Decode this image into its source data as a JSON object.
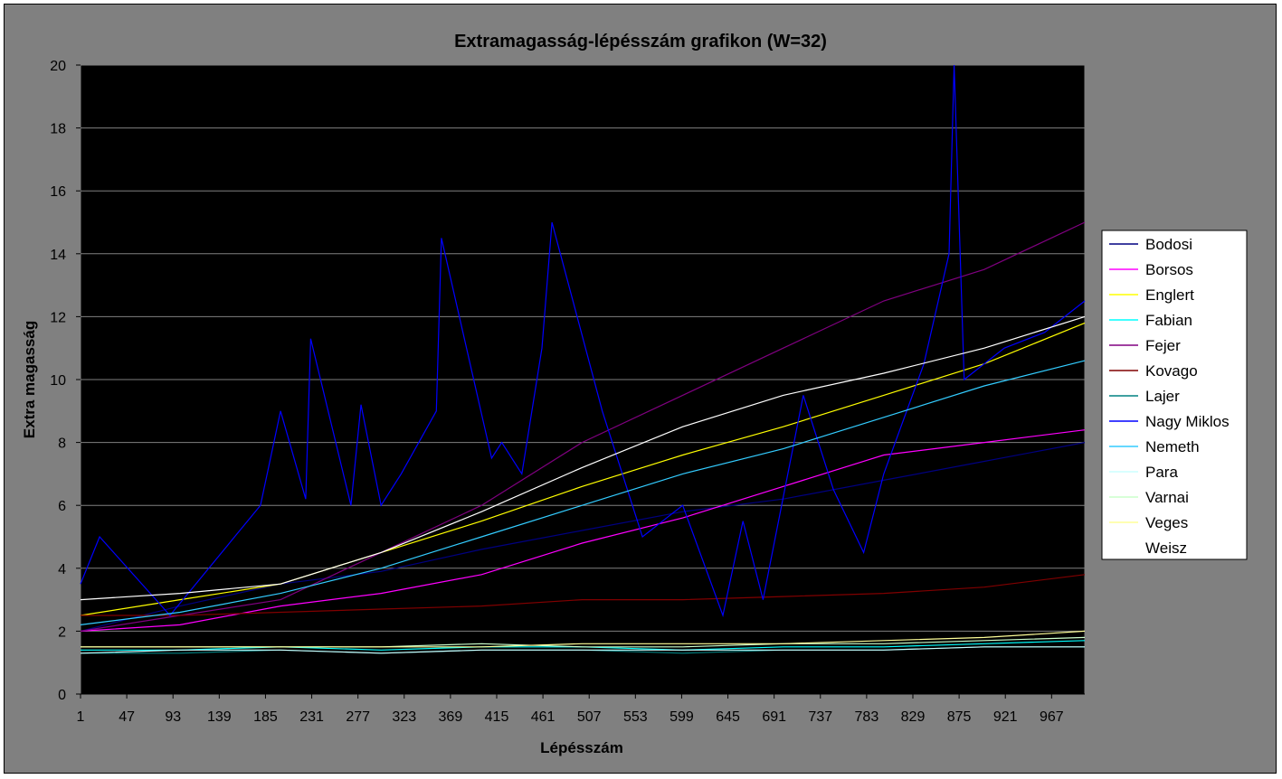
{
  "chart_data": {
    "type": "line",
    "title": "Extramagasság-lépésszám grafikon (W=32)",
    "xlabel": "Lépésszám",
    "ylabel": "Extra magasság",
    "xlim": [
      1,
      1000
    ],
    "ylim": [
      0,
      20
    ],
    "ytick_step": 2,
    "xticks": [
      1,
      47,
      93,
      139,
      185,
      231,
      277,
      323,
      369,
      415,
      461,
      507,
      553,
      599,
      645,
      691,
      737,
      783,
      829,
      875,
      921,
      967
    ],
    "grid": true,
    "legend_position": "right",
    "background": "#000000",
    "series": [
      {
        "name": "Bodosi",
        "color": "#000080",
        "x": [
          1,
          100,
          200,
          300,
          400,
          500,
          600,
          700,
          800,
          900,
          1000
        ],
        "values": [
          2.0,
          2.8,
          3.5,
          3.9,
          4.6,
          5.2,
          5.8,
          6.2,
          6.8,
          7.4,
          8.0
        ]
      },
      {
        "name": "Borsos",
        "color": "#ff00ff",
        "x": [
          1,
          100,
          200,
          300,
          400,
          500,
          600,
          700,
          800,
          900,
          1000
        ],
        "values": [
          2.0,
          2.2,
          2.8,
          3.2,
          3.8,
          4.8,
          5.6,
          6.6,
          7.6,
          8.0,
          8.4
        ]
      },
      {
        "name": "Englert",
        "color": "#ffff00",
        "x": [
          1,
          100,
          200,
          300,
          400,
          500,
          600,
          700,
          800,
          900,
          1000
        ],
        "values": [
          2.5,
          3.0,
          3.5,
          4.5,
          5.5,
          6.6,
          7.6,
          8.5,
          9.5,
          10.5,
          11.8
        ]
      },
      {
        "name": "Fabian",
        "color": "#00ffff",
        "x": [
          1,
          100,
          200,
          300,
          400,
          500,
          600,
          700,
          800,
          900,
          1000
        ],
        "values": [
          1.4,
          1.4,
          1.5,
          1.4,
          1.5,
          1.5,
          1.4,
          1.5,
          1.5,
          1.6,
          1.7
        ]
      },
      {
        "name": "Fejer",
        "color": "#800080",
        "x": [
          1,
          100,
          200,
          300,
          400,
          500,
          600,
          700,
          800,
          900,
          1000
        ],
        "values": [
          2.0,
          2.5,
          3.0,
          4.5,
          6.0,
          8.0,
          9.5,
          11.0,
          12.5,
          13.5,
          15.0
        ]
      },
      {
        "name": "Kovago",
        "color": "#800000",
        "x": [
          1,
          100,
          200,
          300,
          400,
          500,
          600,
          700,
          800,
          900,
          1000
        ],
        "values": [
          2.5,
          2.5,
          2.6,
          2.7,
          2.8,
          3.0,
          3.0,
          3.1,
          3.2,
          3.4,
          3.8
        ]
      },
      {
        "name": "Lajer",
        "color": "#008080",
        "x": [
          1,
          100,
          200,
          300,
          400,
          500,
          600,
          700,
          800,
          900,
          1000
        ],
        "values": [
          1.3,
          1.3,
          1.4,
          1.3,
          1.4,
          1.4,
          1.3,
          1.4,
          1.4,
          1.5,
          1.5
        ]
      },
      {
        "name": "Nagy Miklos",
        "color": "#0000ff",
        "x": [
          1,
          20,
          90,
          180,
          200,
          225,
          230,
          270,
          280,
          300,
          320,
          355,
          360,
          410,
          420,
          440,
          460,
          470,
          520,
          560,
          600,
          640,
          660,
          680,
          720,
          750,
          780,
          800,
          840,
          865,
          870,
          880,
          920,
          960,
          1000
        ],
        "values": [
          3.5,
          5.0,
          2.5,
          6.0,
          9.0,
          6.2,
          11.3,
          6.0,
          9.2,
          6.0,
          7.0,
          9.0,
          14.5,
          7.5,
          8.0,
          7.0,
          11.0,
          15.0,
          9.0,
          5.0,
          6.0,
          2.5,
          5.5,
          3.0,
          9.5,
          6.5,
          4.5,
          7.0,
          10.5,
          14.0,
          20.0,
          10.0,
          11.0,
          11.5,
          12.5
        ]
      },
      {
        "name": "Nemeth",
        "color": "#33ccff",
        "x": [
          1,
          100,
          200,
          300,
          400,
          500,
          600,
          700,
          800,
          900,
          1000
        ],
        "values": [
          2.2,
          2.6,
          3.2,
          4.0,
          5.0,
          6.0,
          7.0,
          7.8,
          8.8,
          9.8,
          10.6
        ]
      },
      {
        "name": "Para",
        "color": "#ccffff",
        "x": [
          1,
          100,
          200,
          300,
          400,
          500,
          600,
          700,
          800,
          900,
          1000
        ],
        "values": [
          1.3,
          1.4,
          1.4,
          1.3,
          1.4,
          1.4,
          1.4,
          1.4,
          1.4,
          1.5,
          1.5
        ]
      },
      {
        "name": "Varnai",
        "color": "#ccffcc",
        "x": [
          1,
          100,
          200,
          300,
          400,
          500,
          600,
          700,
          800,
          900,
          1000
        ],
        "values": [
          1.5,
          1.5,
          1.5,
          1.5,
          1.6,
          1.5,
          1.5,
          1.6,
          1.6,
          1.7,
          1.8
        ]
      },
      {
        "name": "Veges",
        "color": "#ffff99",
        "x": [
          1,
          100,
          200,
          300,
          400,
          500,
          600,
          700,
          800,
          900,
          1000
        ],
        "values": [
          1.5,
          1.5,
          1.5,
          1.5,
          1.5,
          1.6,
          1.6,
          1.6,
          1.7,
          1.8,
          2.0
        ]
      },
      {
        "name": "Weisz",
        "color": "#ffffff",
        "x": [
          1,
          100,
          200,
          300,
          400,
          500,
          600,
          700,
          800,
          900,
          1000
        ],
        "values": [
          3.0,
          3.2,
          3.5,
          4.5,
          5.8,
          7.2,
          8.5,
          9.5,
          10.2,
          11.0,
          12.0
        ]
      }
    ]
  }
}
